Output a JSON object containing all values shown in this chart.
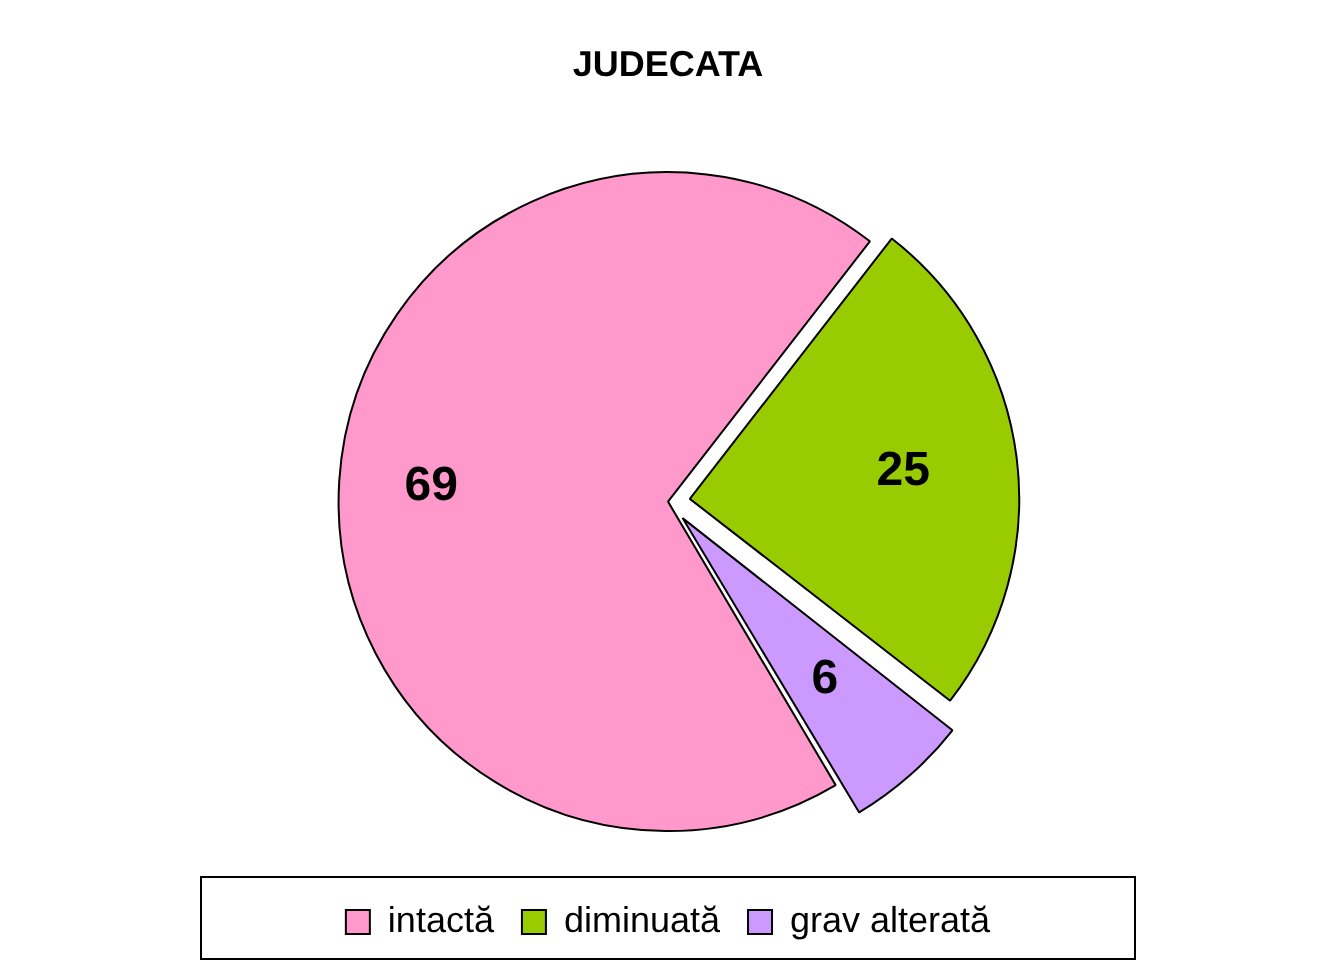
{
  "chart_data": {
    "type": "pie",
    "title": "JUDECATA",
    "categories": [
      "intactă",
      "diminuată",
      "grav alterată"
    ],
    "values": [
      69,
      25,
      6
    ],
    "colors": [
      "#ff99cc",
      "#99cc00",
      "#cc99ff"
    ],
    "data_labels": true,
    "legend": "bottom"
  }
}
